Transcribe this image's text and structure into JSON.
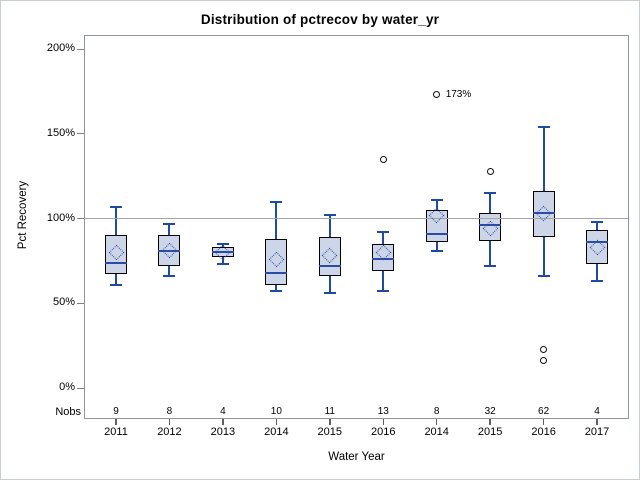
{
  "chart_data": {
    "type": "box",
    "title": "Distribution of pctrecov by water_yr",
    "xlabel": "Water Year",
    "ylabel": "Pct Recovery",
    "nobs_row_label": "Nobs",
    "ylim": [
      0,
      200
    ],
    "yticks": {
      "values": [
        0,
        50,
        100,
        150,
        200
      ],
      "labels": [
        "0%",
        "50%",
        "100%",
        "150%",
        "200%"
      ]
    },
    "refline": 100,
    "grid": "off",
    "legend": "none",
    "categories": [
      "2011",
      "2012",
      "2013",
      "2014",
      "2015",
      "2016",
      "2014",
      "2015",
      "2016",
      "2017"
    ],
    "nobs": [
      9,
      8,
      4,
      10,
      11,
      13,
      8,
      32,
      62,
      4
    ],
    "series": [
      {
        "water_yr": "2011",
        "nobs": 9,
        "min": 61,
        "q1": 67,
        "median": 74,
        "mean": 80,
        "q3": 90,
        "max": 107,
        "outliers": []
      },
      {
        "water_yr": "2012",
        "nobs": 8,
        "min": 66,
        "q1": 72,
        "median": 81,
        "mean": 81,
        "q3": 90,
        "max": 97,
        "outliers": []
      },
      {
        "water_yr": "2013",
        "nobs": 4,
        "min": 73,
        "q1": 77,
        "median": 80,
        "mean": 80,
        "q3": 83,
        "max": 85,
        "outliers": []
      },
      {
        "water_yr": "2014",
        "nobs": 10,
        "min": 57,
        "q1": 61,
        "median": 68,
        "mean": 76,
        "q3": 88,
        "max": 110,
        "outliers": []
      },
      {
        "water_yr": "2015",
        "nobs": 11,
        "min": 56,
        "q1": 66,
        "median": 72,
        "mean": 78,
        "q3": 89,
        "max": 102,
        "outliers": []
      },
      {
        "water_yr": "2016",
        "nobs": 13,
        "min": 57,
        "q1": 69,
        "median": 76,
        "mean": 80,
        "q3": 85,
        "max": 92,
        "outliers": [
          135
        ]
      },
      {
        "water_yr": "2014",
        "nobs": 8,
        "min": 81,
        "q1": 86,
        "median": 91,
        "mean": 102,
        "q3": 105,
        "max": 111,
        "outliers": [
          173
        ],
        "outlier_labels": [
          "173%"
        ]
      },
      {
        "water_yr": "2015",
        "nobs": 32,
        "min": 72,
        "q1": 87,
        "median": 96,
        "mean": 94,
        "q3": 103,
        "max": 115,
        "outliers": [
          128
        ]
      },
      {
        "water_yr": "2016",
        "nobs": 62,
        "min": 66,
        "q1": 89,
        "median": 103,
        "mean": 103,
        "q3": 116,
        "max": 154,
        "outliers": [
          23,
          16
        ]
      },
      {
        "water_yr": "2017",
        "nobs": 4,
        "min": 63,
        "q1": 73,
        "median": 86,
        "mean": 83,
        "q3": 93,
        "max": 98,
        "outliers": []
      }
    ]
  },
  "colors": {
    "box_fill": "#ccd6e8",
    "box_border": "#000000",
    "median": "#2b4ba6",
    "whisker": "#1c4ba1",
    "mean_marker": "#2b4ba6",
    "refline": "#a6a6a6",
    "outlier": "#111111",
    "frame": "#8f969e",
    "text": "#000000"
  }
}
